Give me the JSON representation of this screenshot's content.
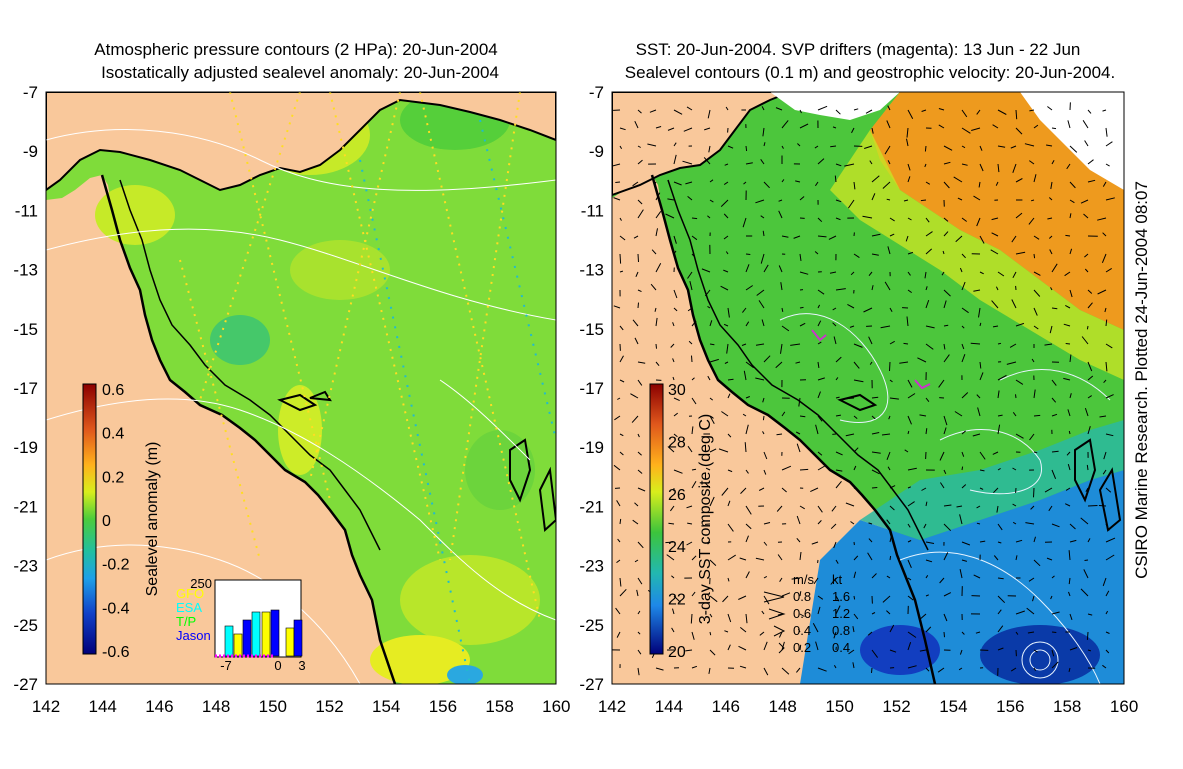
{
  "left_panel": {
    "title_line1": "Atmospheric pressure contours (2 HPa): 20-Jun-2004",
    "title_line2": "Isostatically adjusted sealevel anomaly: 20-Jun-2004",
    "colorbar_label": "Sealevel anomaly (m)",
    "colorbar_ticks": [
      "0.6",
      "0.4",
      "0.2",
      "0",
      "-0.2",
      "-0.4",
      "-0.6"
    ],
    "inset": {
      "ymax_label": "250",
      "legend": [
        {
          "label": "GFO",
          "color": "#ffff00"
        },
        {
          "label": "ESA",
          "color": "#00ffff"
        },
        {
          "label": "T/P",
          "color": "#00ff00"
        },
        {
          "label": "Jason",
          "color": "#0000ff"
        }
      ],
      "x_ticks": [
        "-7",
        "0",
        "3"
      ]
    }
  },
  "right_panel": {
    "title_line1": "SST: 20-Jun-2004. SVP drifters (magenta): 13 Jun - 22 Jun",
    "title_line2": "Sealevel contours (0.1 m) and geostrophic velocity: 20-Jun-2004.",
    "colorbar_label": "3-day SST composite (deg C)",
    "colorbar_ticks": [
      "30",
      "28",
      "26",
      "24",
      "22",
      "20"
    ],
    "velocity_legend": {
      "header_ms": "m/s",
      "header_kt": "kt",
      "rows": [
        {
          "ms": "0.8",
          "kt": "1.6"
        },
        {
          "ms": "0.6",
          "kt": "1.2"
        },
        {
          "ms": "0.4",
          "kt": "0.8"
        },
        {
          "ms": "0.2",
          "kt": "0.4"
        }
      ]
    }
  },
  "axes": {
    "lat_labels": [
      "-7",
      "-9",
      "-11",
      "-13",
      "-15",
      "-17",
      "-19",
      "-21",
      "-23",
      "-25",
      "-27"
    ],
    "lon_labels": [
      "142",
      "144",
      "146",
      "148",
      "150",
      "152",
      "154",
      "156",
      "158",
      "160"
    ]
  },
  "credit": "CSIRO Marine Research. Plotted 24-Jun-2004 08:07",
  "colors": {
    "land": "#f9c89b",
    "sla_base": "#7fdc3a",
    "sst_warm": "#ee9a1e",
    "sst_mid": "#4cc63c",
    "sst_cool": "#1e8cd8"
  }
}
